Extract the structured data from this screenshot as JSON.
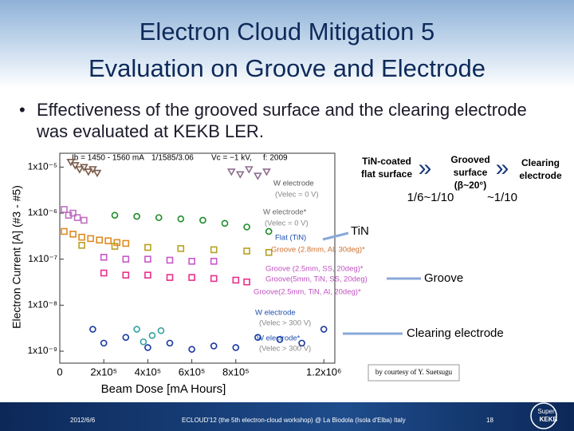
{
  "slide": {
    "title": [
      "Electron Cloud Mitigation 5",
      "Evaluation on Groove and Electrode"
    ],
    "bullet": "Effectiveness of the grooved surface and the clearing electrode was evaluated at KEKB LER.",
    "diagram": {
      "steps": [
        [
          "TiN-coated",
          "flat surface"
        ],
        [
          "Grooved",
          "surface",
          "(β~20°)"
        ],
        [
          "Clearing",
          "electrode"
        ]
      ],
      "arrow": "»",
      "reductions": [
        "1/6~1/10",
        "~1/10"
      ]
    },
    "callouts": [
      "TiN",
      "Groove",
      "Clearing electrode"
    ],
    "credit": "by courtesy of Y. Suetsugu",
    "footer": {
      "date": "2012/6/6",
      "event": "ECLOUD'12 (the 5th electron-cloud workshop) @ La Biodola (Isola d'Elba) Italy",
      "page": "18",
      "logo": [
        "Super",
        "KEKB"
      ]
    }
  },
  "plot": {
    "type": "scatter",
    "header": [
      "Ib = 1450 - 1560 mA",
      "1/1585/3.06",
      "Vc = −1 kV,",
      "f: 2009"
    ],
    "xlabel": "Beam Dose [mA Hours]",
    "ylabel": "Electron Current [A] (#3 - #5)",
    "log_y": true,
    "xlim": [
      0,
      1250000
    ],
    "ylim": [
      5.5e-10,
      2e-05
    ],
    "xticks": [
      0,
      {
        "value": 200000,
        "label": "2x10⁵"
      },
      {
        "value": 400000,
        "label": "4x10⁵"
      },
      {
        "value": 600000,
        "label": "6x10⁵"
      },
      {
        "value": 800000,
        "label": "8x10⁵"
      },
      {
        "value": 1200000,
        "label": "1.2x10⁶"
      }
    ],
    "yticks": [
      {
        "value": 1e-05,
        "label": "1x10⁻⁵"
      },
      {
        "value": 1e-06,
        "label": "1x10⁻⁶"
      },
      {
        "value": 1e-07,
        "label": "1x10⁻⁷"
      },
      {
        "value": 1e-08,
        "label": "1x10⁻⁸"
      },
      {
        "value": 1e-09,
        "label": "1x10⁻⁹"
      }
    ],
    "annotations": [
      "W electrode",
      "(Velec = 0 V)",
      "W electrode*",
      "(Velec = 0 V)",
      "Flat (TiN)",
      "Groove (2.8mm, Al, 30deg)*",
      "Groove (2.5mm, SS, 20deg)*",
      "Groove(5mm, TiN, SS, 20deg)",
      "Groove(2.5mm, TiN, Al, 20deg)*",
      "W electrode",
      "(Velec > 300 V)",
      "W electrode*",
      "(Velec > 300 V)"
    ],
    "series": [
      {
        "color": "#7a5a48",
        "marker": "triangle",
        "x": [
          50000,
          70000,
          90000,
          110000,
          130000,
          150000,
          170000
        ],
        "y": [
          1.3e-05,
          1.1e-05,
          9e-06,
          1e-05,
          8e-06,
          9e-06,
          7.5e-06
        ]
      },
      {
        "color": "#8e6e8e",
        "marker": "triangle",
        "x": [
          780000,
          820000,
          860000,
          900000,
          940000
        ],
        "y": [
          8e-06,
          7e-06,
          9e-06,
          6.5e-06,
          8e-06
        ]
      },
      {
        "color": "#c070c0",
        "marker": "square",
        "x": [
          20000,
          40000,
          60000,
          80000,
          110000
        ],
        "y": [
          1.2e-06,
          9e-07,
          1e-06,
          8e-07,
          7e-07
        ]
      },
      {
        "color": "#1e8c28",
        "marker": "circle",
        "x": [
          250000,
          350000,
          450000,
          550000,
          650000,
          750000,
          850000,
          950000
        ],
        "y": [
          9e-07,
          8.5e-07,
          8e-07,
          7.5e-07,
          7e-07,
          6e-07,
          5e-07,
          4e-07
        ]
      },
      {
        "color": "#e08a20",
        "marker": "square",
        "x": [
          20000,
          60000,
          100000,
          140000,
          180000,
          220000,
          260000,
          300000
        ],
        "y": [
          4e-07,
          3.5e-07,
          3e-07,
          2.8e-07,
          2.6e-07,
          2.5e-07,
          2.3e-07,
          2.2e-07
        ]
      },
      {
        "color": "#b8a020",
        "marker": "square",
        "x": [
          100000,
          250000,
          400000,
          550000,
          700000,
          850000,
          950000
        ],
        "y": [
          2e-07,
          1.9e-07,
          1.8e-07,
          1.7e-07,
          1.6e-07,
          1.5e-07,
          1.4e-07
        ]
      },
      {
        "color": "#c858c8",
        "marker": "square",
        "x": [
          200000,
          300000,
          400000,
          500000,
          600000,
          700000
        ],
        "y": [
          1.1e-07,
          1e-07,
          1e-07,
          9.5e-08,
          9e-08,
          9e-08
        ]
      },
      {
        "color": "#e8308a",
        "marker": "square",
        "x": [
          200000,
          300000,
          400000,
          500000,
          600000,
          700000,
          800000,
          850000
        ],
        "y": [
          5e-08,
          4.5e-08,
          4.5e-08,
          4e-08,
          4e-08,
          3.8e-08,
          3.5e-08,
          3.2e-08
        ]
      },
      {
        "color": "#1838a0",
        "marker": "circle",
        "x": [
          150000,
          200000,
          300000,
          400000,
          500000,
          600000,
          700000,
          800000,
          900000,
          1000000,
          1100000,
          1200000
        ],
        "y": [
          3e-09,
          1.5e-09,
          2e-09,
          1.2e-09,
          1.5e-09,
          1.1e-09,
          1.3e-09,
          1.2e-09,
          2e-09,
          1.8e-09,
          1.5e-09,
          3e-09
        ]
      },
      {
        "color": "#30a0a0",
        "marker": "circle",
        "x": [
          350000,
          380000,
          420000,
          460000
        ],
        "y": [
          3e-09,
          1.6e-09,
          2.2e-09,
          2.8e-09
        ]
      }
    ]
  }
}
